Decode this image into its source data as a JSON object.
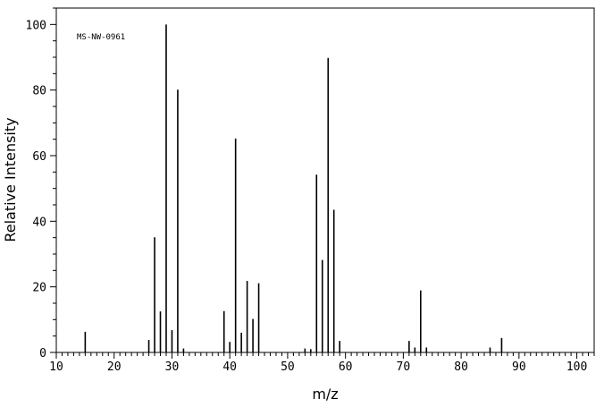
{
  "chart_data": {
    "type": "bar",
    "annotation": "MS-NW-0961",
    "xlabel": "m/z",
    "ylabel": "Relative Intensity",
    "xlim": [
      10,
      103
    ],
    "ylim": [
      0,
      105
    ],
    "x_ticks": [
      10,
      20,
      30,
      40,
      50,
      60,
      70,
      80,
      90,
      100
    ],
    "y_ticks": [
      0,
      20,
      40,
      60,
      80,
      100
    ],
    "grid": false,
    "bar_color": "#000000",
    "x": [
      15,
      26,
      27,
      28,
      29,
      30,
      31,
      32,
      39,
      40,
      41,
      42,
      43,
      44,
      45,
      53,
      54,
      55,
      56,
      57,
      58,
      59,
      71,
      72,
      73,
      74,
      85,
      87
    ],
    "values": [
      6.3,
      3.8,
      35.1,
      12.5,
      100,
      6.8,
      80.1,
      1.2,
      12.6,
      3.2,
      65.2,
      6.0,
      21.8,
      10.2,
      21.1,
      1.2,
      1.0,
      54.2,
      28.2,
      89.8,
      43.5,
      3.5,
      3.5,
      1.5,
      18.9,
      1.5,
      1.5,
      4.4
    ]
  }
}
